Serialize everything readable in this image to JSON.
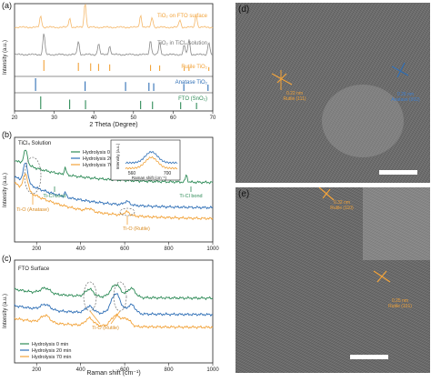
{
  "panels": {
    "a": {
      "label": "(a)",
      "ylabel": "Intensity (a.u.)",
      "xlabel": "2 Theta (Degree)",
      "xticks": [
        "20",
        "30",
        "40",
        "50",
        "60",
        "70"
      ],
      "legends": {
        "fto_surface": "TiO₂ on FTO surface",
        "ticl4_solution": "TiO₂ in TiCl₄ solution",
        "rutile": "Rutile TiO₂",
        "anatase": "Anatase TiO₂",
        "fto": "FTO (SnO₂)"
      },
      "colors": {
        "orange_light": "#f5b86a",
        "gray": "#8a8a8a",
        "orange": "#f2a33a",
        "blue": "#2f6fb6",
        "green": "#2e8b57"
      }
    },
    "b": {
      "label": "(b)",
      "title": "TiCl₄ Solution",
      "ylabel": "Intensity (a.u.)",
      "xticks": [
        "200",
        "400",
        "600",
        "800",
        "1000"
      ],
      "series": [
        "Hydrolysis 0 min",
        "Hydrolysis 20 min",
        "Hydrolysis 70 min"
      ],
      "annotations": {
        "ti_cl_left": "Ti-Cl bond",
        "ti_cl_right": "Ti-Cl bond",
        "anatase": "Ti-O (Anatase)",
        "rutile": "Ti-O (Rutile)"
      },
      "inset": {
        "xlabel": "Raman shift (cm⁻¹)",
        "ylabel": "Intensity (a.u.)",
        "xticks": [
          "560",
          "700"
        ]
      }
    },
    "c": {
      "label": "(c)",
      "title": "FTO Surface",
      "ylabel": "Intensity (a.u.)",
      "xlabel": "Raman shift (cm⁻¹)",
      "xticks": [
        "200",
        "400",
        "600",
        "800",
        "1000"
      ],
      "series": [
        "Hydrolysis 0 min",
        "Hydrolysis 20 min",
        "Hydrolysis 70 min"
      ],
      "annotations": {
        "rutile": "Ti-O (Rutile)"
      }
    },
    "d": {
      "label": "(d)",
      "lattice_left_value": "0.22 nm",
      "lattice_left_name": "Rutile (111)",
      "lattice_right_value": "0.26 nm",
      "lattice_right_name": "Anatase (002)"
    },
    "e": {
      "label": "(e)",
      "lattice_top_value": "0.32 nm",
      "lattice_top_name": "Rutile (110)",
      "lattice_bottom_value": "0.25 nm",
      "lattice_bottom_name": "Rutile (101)"
    }
  },
  "chart_data": [
    {
      "type": "line",
      "panel": "a",
      "x_range": [
        20,
        70
      ],
      "series": [
        {
          "name": "TiO₂ on FTO surface",
          "color": "#f5b86a",
          "peaks_x": [
            26.6,
            33.9,
            37.8,
            51.8,
            54.7,
            61.7,
            65.8
          ]
        },
        {
          "name": "TiO₂ in TiCl₄ solution",
          "color": "#8a8a8a",
          "peaks_x": [
            27.4,
            36.1,
            41.2,
            44.0,
            54.3,
            56.6,
            62.8,
            64.0,
            69.0
          ]
        },
        {
          "name": "Rutile TiO₂",
          "color": "#f2a33a",
          "sticks_x": [
            27.4,
            36.1,
            39.2,
            41.2,
            44.0,
            54.3,
            56.6,
            62.8,
            64.0,
            69.0
          ]
        },
        {
          "name": "Anatase TiO₂",
          "color": "#2f6fb6",
          "sticks_x": [
            25.3,
            37.8,
            48.0,
            53.9,
            55.1,
            62.7,
            68.8
          ]
        },
        {
          "name": "FTO (SnO₂)",
          "color": "#2e8b57",
          "sticks_x": [
            26.6,
            33.9,
            37.9,
            51.8,
            54.8,
            61.9,
            65.9
          ]
        }
      ]
    },
    {
      "type": "line",
      "panel": "b",
      "x_range": [
        100,
        1000
      ],
      "series": [
        {
          "name": "Hydrolysis 0 min",
          "color": "#2e8b57"
        },
        {
          "name": "Hydrolysis 20 min",
          "color": "#2f6fb6"
        },
        {
          "name": "Hydrolysis 70 min",
          "color": "#f2a33a"
        }
      ]
    },
    {
      "type": "line",
      "panel": "c",
      "x_range": [
        100,
        1000
      ],
      "series": [
        {
          "name": "Hydrolysis 0 min",
          "color": "#2e8b57"
        },
        {
          "name": "Hydrolysis 20 min",
          "color": "#2f6fb6"
        },
        {
          "name": "Hydrolysis 70 min",
          "color": "#f2a33a"
        }
      ]
    }
  ]
}
